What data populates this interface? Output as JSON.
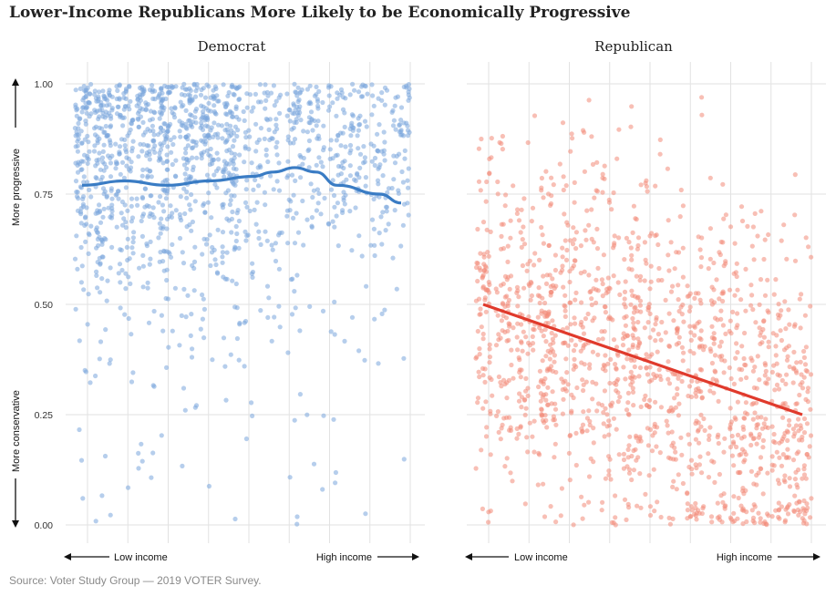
{
  "title": "Lower-Income Republicans More Likely to be Economically Progressive",
  "source": "Source: Voter Study Group — 2019 VOTER Survey.",
  "y_axis": {
    "up_label": "More progressive",
    "down_label": "More conservative"
  },
  "x_axis": {
    "low_label": "Low income",
    "high_label": "High income"
  },
  "colors": {
    "democrat_points": "#7aa6dc",
    "democrat_line": "#3a7cc4",
    "republican_points": "#f28b78",
    "republican_line": "#e03a2c",
    "grid": "#e2e2e2"
  },
  "chart_data": [
    {
      "type": "scatter",
      "panel_title": "Democrat",
      "ylim": [
        0,
        1
      ],
      "yticks": [
        "0.00",
        "0.25",
        "0.50",
        "0.75",
        "1.00"
      ],
      "income_levels": 16,
      "grid": true,
      "trend": {
        "x": [
          1,
          3,
          5,
          7,
          9,
          10,
          11,
          12,
          13,
          15,
          16
        ],
        "y": [
          0.77,
          0.78,
          0.77,
          0.78,
          0.79,
          0.8,
          0.81,
          0.8,
          0.77,
          0.75,
          0.73
        ]
      }
    },
    {
      "type": "scatter",
      "panel_title": "Republican",
      "ylim": [
        0,
        1
      ],
      "income_levels": 16,
      "grid": true,
      "trend": {
        "x": [
          1,
          16
        ],
        "y": [
          0.5,
          0.25
        ]
      }
    }
  ]
}
